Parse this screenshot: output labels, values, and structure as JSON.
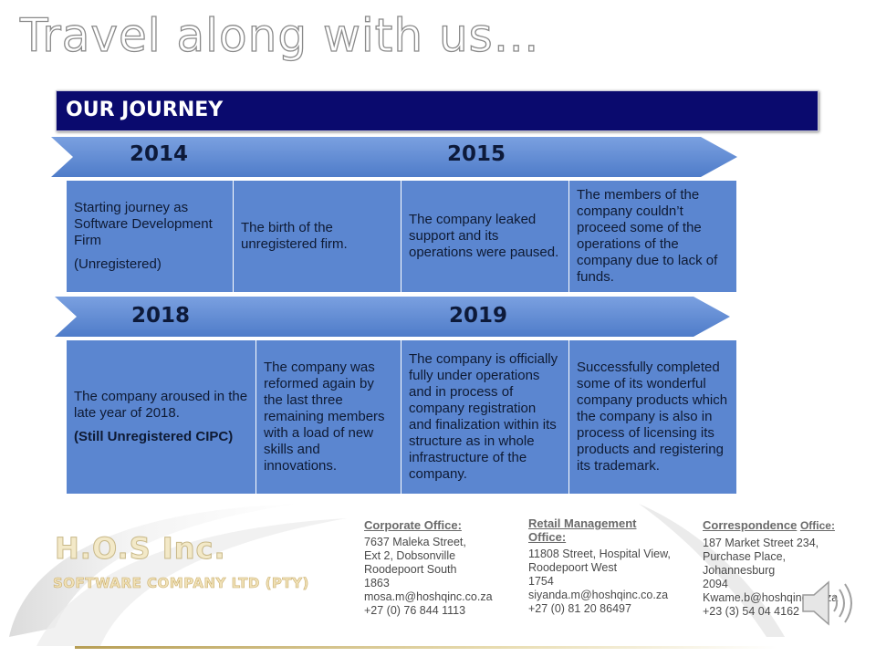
{
  "title": "Travel along with us…",
  "banner": {
    "label": "OUR JOURNEY"
  },
  "timeline": [
    {
      "years": [
        "2014",
        "2015"
      ],
      "cells": [
        {
          "lines": [
            "Starting journey as Software Development Firm"
          ],
          "extra": "(Unregistered)"
        },
        {
          "lines": [
            "The birth of the unregistered firm."
          ]
        },
        {
          "lines": [
            "The company leaked support and its operations were paused."
          ]
        },
        {
          "lines": [
            "The members of the company couldn’t proceed some of the operations of the company due to lack of funds."
          ]
        }
      ]
    },
    {
      "years": [
        "2018",
        "2019"
      ],
      "cells": [
        {
          "lines": [
            "The company aroused in the late year of 2018."
          ],
          "extra": "(Still Unregistered CIPC)"
        },
        {
          "lines": [
            "The company was reformed again by the last three remaining members with a load of new skills and innovations."
          ]
        },
        {
          "lines": [
            "The company is officially fully under operations and in process of company registration and finalization within its structure as in whole infrastructure of the company."
          ]
        },
        {
          "lines": [
            "Successfully completed some of its wonderful company products which the company is also in process of licensing its products and registering its trademark."
          ]
        }
      ]
    }
  ],
  "logo": {
    "name": "H.O.S Inc.",
    "subtitle": "SOFTWARE COMPANY LTD (PTY)"
  },
  "offices": {
    "corporate": {
      "heading": "Corporate Office:",
      "lines": [
        "7637 Maleka Street,",
        "Ext 2, Dobsonville",
        " Roodepoort South",
        "1863",
        "mosa.m@hoshqinc.co.za",
        "+27 (0) 76 844 1113"
      ]
    },
    "retail": {
      "heading_1": "Retail Management",
      "heading_2": "Office:",
      "lines": [
        "11808 Street, Hospital View,",
        " Roodepoort West",
        "1754",
        "siyanda.m@hoshqinc.co.za",
        "+27 (0) 81 20 86497"
      ]
    },
    "correspondence": {
      "heading_a": "Correspondence",
      "heading_b": "Office:",
      "lines": [
        "187 Market Street 234,",
        "Purchase Place,",
        "Johannesburg",
        "2094",
        "Kwame.b@hoshqinc.co.za",
        "+23 (3) 54 04 4162"
      ]
    }
  },
  "icons": {
    "speaker": "speaker-icon"
  },
  "colors": {
    "banner": "#0a0a6e",
    "arrow": "#5b86d0",
    "cell": "#5b86d0"
  }
}
